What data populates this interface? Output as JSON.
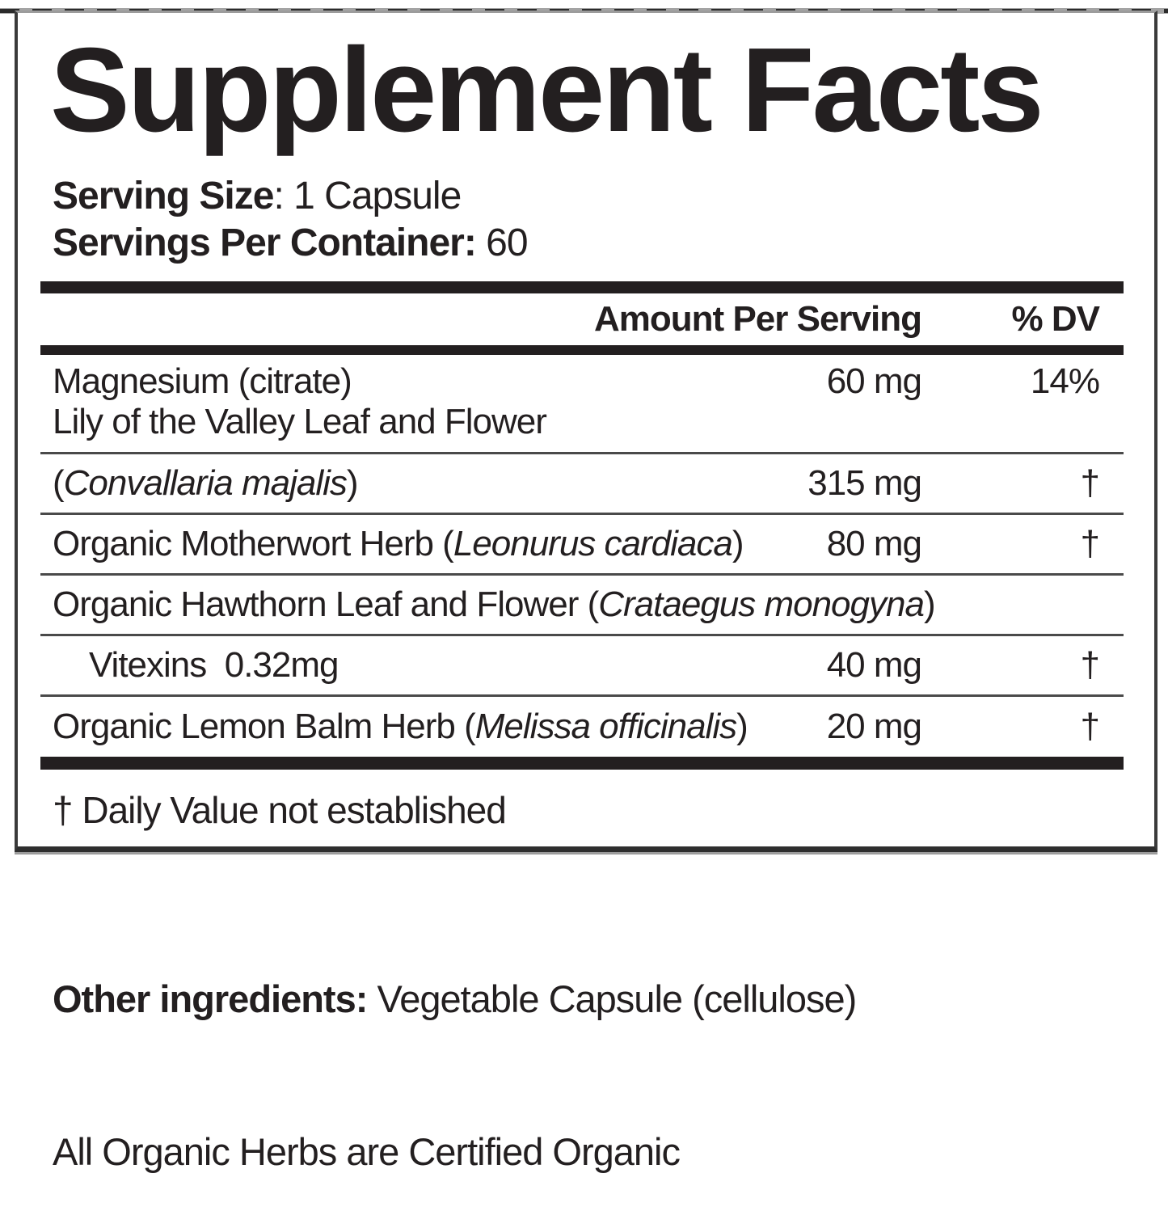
{
  "panel": {
    "title": "Supplement Facts",
    "serving": {
      "size_label": "Serving Size",
      "size_sep": ": ",
      "size_value": "1 Capsule",
      "per_container_label": "Servings Per Container:",
      "per_container_sep": " ",
      "per_container_value": "60"
    },
    "columns": {
      "amount": "Amount Per Serving",
      "dv": "% DV"
    },
    "rows": [
      {
        "name_prefix": "Magnesium (citrate)",
        "name_italic": "",
        "name_suffix": "",
        "amount": "60 mg",
        "dv": "14%"
      },
      {
        "name_prefix": "Lily of the Valley Leaf and Flower",
        "name_italic": "",
        "name_suffix": "",
        "amount": "",
        "dv": ""
      },
      {
        "name_prefix": "(",
        "name_italic": "Convallaria majalis",
        "name_suffix": ")",
        "amount": "315 mg",
        "dv": "†"
      },
      {
        "name_prefix": "Organic Motherwort Herb (",
        "name_italic": "Leonurus cardiaca",
        "name_suffix": ")",
        "amount": "80 mg",
        "dv": "†"
      },
      {
        "name_prefix": "Organic Hawthorn Leaf and Flower (",
        "name_italic": "Crataegus monogyna",
        "name_suffix": ")",
        "amount": "",
        "dv": ""
      },
      {
        "name_prefix": "Vitexins  0.32mg",
        "name_italic": "",
        "name_suffix": "",
        "amount": "40 mg",
        "dv": "†"
      },
      {
        "name_prefix": "Organic Lemon Balm Herb (",
        "name_italic": "Melissa officinalis",
        "name_suffix": ")",
        "amount": "20 mg",
        "dv": "†"
      }
    ],
    "footnote": "† Daily Value not established"
  },
  "footer": {
    "other_label": "Other ingredients:",
    "other_sep": " ",
    "other_value": "Vegetable Capsule (cellulose)",
    "note": "All Organic Herbs are Certified Organic"
  },
  "colors": {
    "ink": "#231f20",
    "rule": "#4a4a4a",
    "border_dark": "#3a3a3a",
    "border_gray": "#9c9c9c",
    "background": "#ffffff"
  }
}
